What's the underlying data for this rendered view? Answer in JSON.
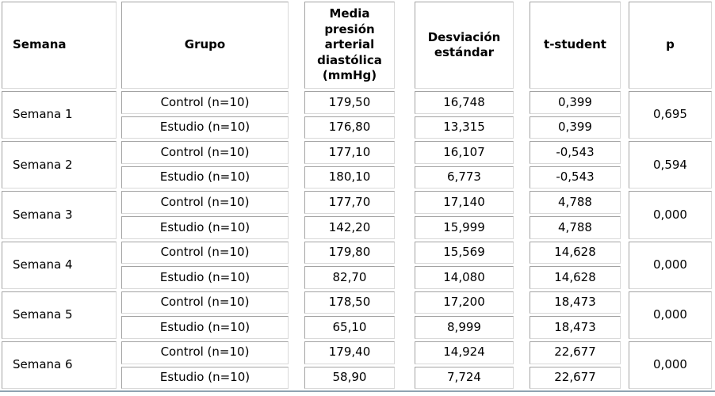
{
  "table": {
    "headers": [
      "Semana",
      "Grupo",
      "Media presión arterial diastólica (mmHg)",
      "Desviación estándar",
      "t-student",
      "p"
    ],
    "weeks": [
      {
        "semana": "Semana 1",
        "p": "0,695",
        "rows": [
          {
            "grupo": "Control (n=10)",
            "media": "179,50",
            "desviacion": "16,748",
            "t": "0,399"
          },
          {
            "grupo": "Estudio (n=10)",
            "media": "176,80",
            "desviacion": "13,315",
            "t": "0,399"
          }
        ]
      },
      {
        "semana": "Semana 2",
        "p": "0,594",
        "rows": [
          {
            "grupo": "Control (n=10)",
            "media": "177,10",
            "desviacion": "16,107",
            "t": "-0,543"
          },
          {
            "grupo": "Estudio (n=10)",
            "media": "180,10",
            "desviacion": "6,773",
            "t": "-0,543"
          }
        ]
      },
      {
        "semana": "Semana 3",
        "p": "0,000",
        "rows": [
          {
            "grupo": "Control (n=10)",
            "media": "177,70",
            "desviacion": "17,140",
            "t": "4,788"
          },
          {
            "grupo": "Estudio (n=10)",
            "media": "142,20",
            "desviacion": "15,999",
            "t": "4,788"
          }
        ]
      },
      {
        "semana": "Semana 4",
        "p": "0,000",
        "rows": [
          {
            "grupo": "Control (n=10)",
            "media": "179,80",
            "desviacion": "15,569",
            "t": "14,628"
          },
          {
            "grupo": "Estudio (n=10)",
            "media": "82,70",
            "desviacion": "14,080",
            "t": "14,628"
          }
        ]
      },
      {
        "semana": "Semana 5",
        "p": "0,000",
        "rows": [
          {
            "grupo": "Control (n=10)",
            "media": "178,50",
            "desviacion": "17,200",
            "t": "18,473"
          },
          {
            "grupo": "Estudio (n=10)",
            "media": "65,10",
            "desviacion": "8,999",
            "t": "18,473"
          }
        ]
      },
      {
        "semana": "Semana 6",
        "p": "0,000",
        "rows": [
          {
            "grupo": "Control (n=10)",
            "media": "179,40",
            "desviacion": "14,924",
            "t": "22,677"
          },
          {
            "grupo": "Estudio (n=10)",
            "media": "58,90",
            "desviacion": "7,724",
            "t": "22,677"
          }
        ]
      }
    ]
  },
  "colors": {
    "background": "#ffffff",
    "text": "#000000",
    "border_dark": "#a3a3a3",
    "border_light": "#d9d9d9",
    "bottom_rule": "#8fa3b2"
  }
}
